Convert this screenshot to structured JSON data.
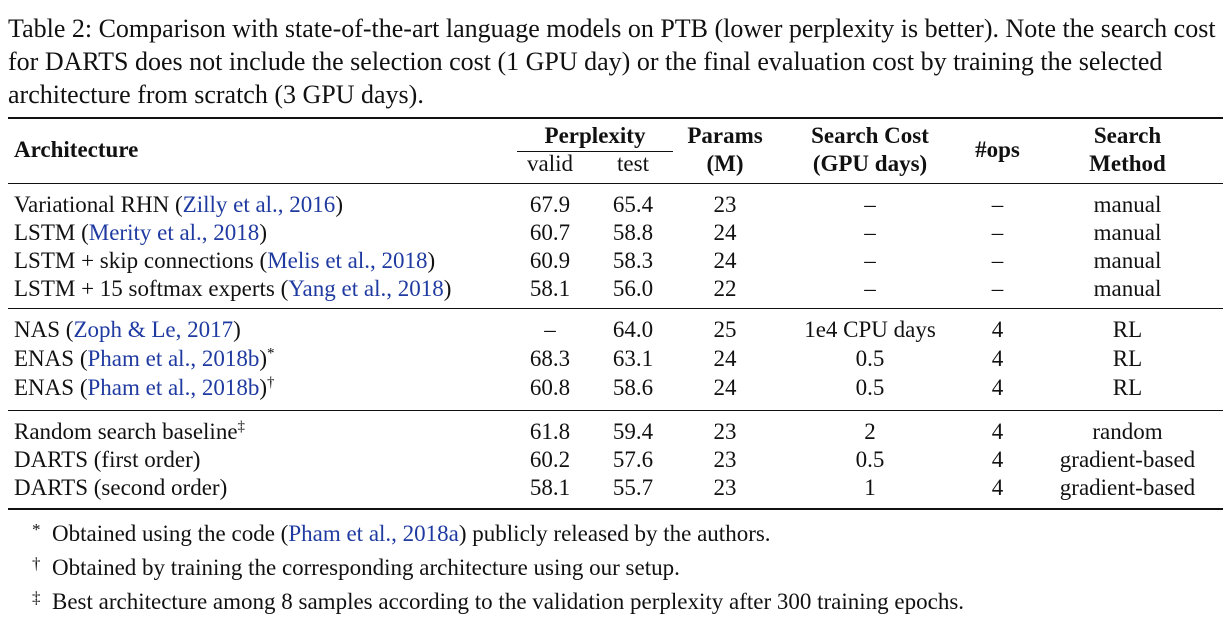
{
  "caption": {
    "label": "Table 2:",
    "text": "Comparison with state-of-the-art language models on PTB (lower perplexity is better). Note the search cost for DARTS does not include the selection cost (1 GPU day) or the final evaluation cost by training the selected architecture from scratch (3 GPU days)."
  },
  "header": {
    "architecture": "Architecture",
    "perplexity": "Perplexity",
    "valid": "valid",
    "test": "test",
    "params_1": "Params",
    "params_2": "(M)",
    "cost_1": "Search Cost",
    "cost_2": "(GPU days)",
    "ops": "#ops",
    "method_1": "Search",
    "method_2": "Method"
  },
  "groups": [
    [
      {
        "arch": "Variational RHN ",
        "cite": "Zilly et al., 2016",
        "close": ")",
        "mark": "",
        "valid": "67.9",
        "test": "65.4",
        "params": "23",
        "cost": "–",
        "ops": "–",
        "method": "manual"
      },
      {
        "arch": "LSTM ",
        "cite": "Merity et al., 2018",
        "close": ")",
        "mark": "",
        "valid": "60.7",
        "test": "58.8",
        "params": "24",
        "cost": "–",
        "ops": "–",
        "method": "manual"
      },
      {
        "arch": "LSTM + skip connections ",
        "cite": "Melis et al., 2018",
        "close": ")",
        "mark": "",
        "valid": "60.9",
        "test": "58.3",
        "params": "24",
        "cost": "–",
        "ops": "–",
        "method": "manual"
      },
      {
        "arch": "LSTM + 15 softmax experts ",
        "cite": "Yang et al., 2018",
        "close": ")",
        "mark": "",
        "valid": "58.1",
        "test": "56.0",
        "params": "22",
        "cost": "–",
        "ops": "–",
        "method": "manual"
      }
    ],
    [
      {
        "arch": "NAS ",
        "cite": "Zoph & Le, 2017",
        "close": ")",
        "mark": "",
        "valid": "–",
        "test": "64.0",
        "params": "25",
        "cost": "1e4 CPU days",
        "ops": "4",
        "method": "RL"
      },
      {
        "arch": "ENAS ",
        "cite": "Pham et al., 2018b",
        "close": ")",
        "mark": "*",
        "valid": "68.3",
        "test": "63.1",
        "params": "24",
        "cost": "0.5",
        "ops": "4",
        "method": "RL"
      },
      {
        "arch": "ENAS ",
        "cite": "Pham et al., 2018b",
        "close": ")",
        "mark": "†",
        "valid": "60.8",
        "test": "58.6",
        "params": "24",
        "cost": "0.5",
        "ops": "4",
        "method": "RL"
      }
    ],
    [
      {
        "arch": "Random search baseline",
        "cite": "",
        "close": "",
        "mark": "‡",
        "valid": "61.8",
        "test": "59.4",
        "params": "23",
        "cost": "2",
        "ops": "4",
        "method": "random"
      },
      {
        "arch": "DARTS (first order)",
        "cite": "",
        "close": "",
        "mark": "",
        "valid": "60.2",
        "test": "57.6",
        "params": "23",
        "cost": "0.5",
        "ops": "4",
        "method": "gradient-based"
      },
      {
        "arch": "DARTS (second order)",
        "cite": "",
        "close": "",
        "mark": "",
        "valid": "58.1",
        "test": "55.7",
        "params": "23",
        "cost": "1",
        "ops": "4",
        "method": "gradient-based"
      }
    ]
  ],
  "footnotes": [
    {
      "mark": "*",
      "pre": "Obtained using the code (",
      "cite": "Pham et al., 2018a",
      "post": ") publicly released by the authors."
    },
    {
      "mark": "†",
      "pre": "Obtained by training the corresponding architecture using our setup.",
      "cite": "",
      "post": ""
    },
    {
      "mark": "‡",
      "pre": "Best architecture among 8 samples according to the validation perplexity after 300 training epochs.",
      "cite": "",
      "post": ""
    }
  ]
}
